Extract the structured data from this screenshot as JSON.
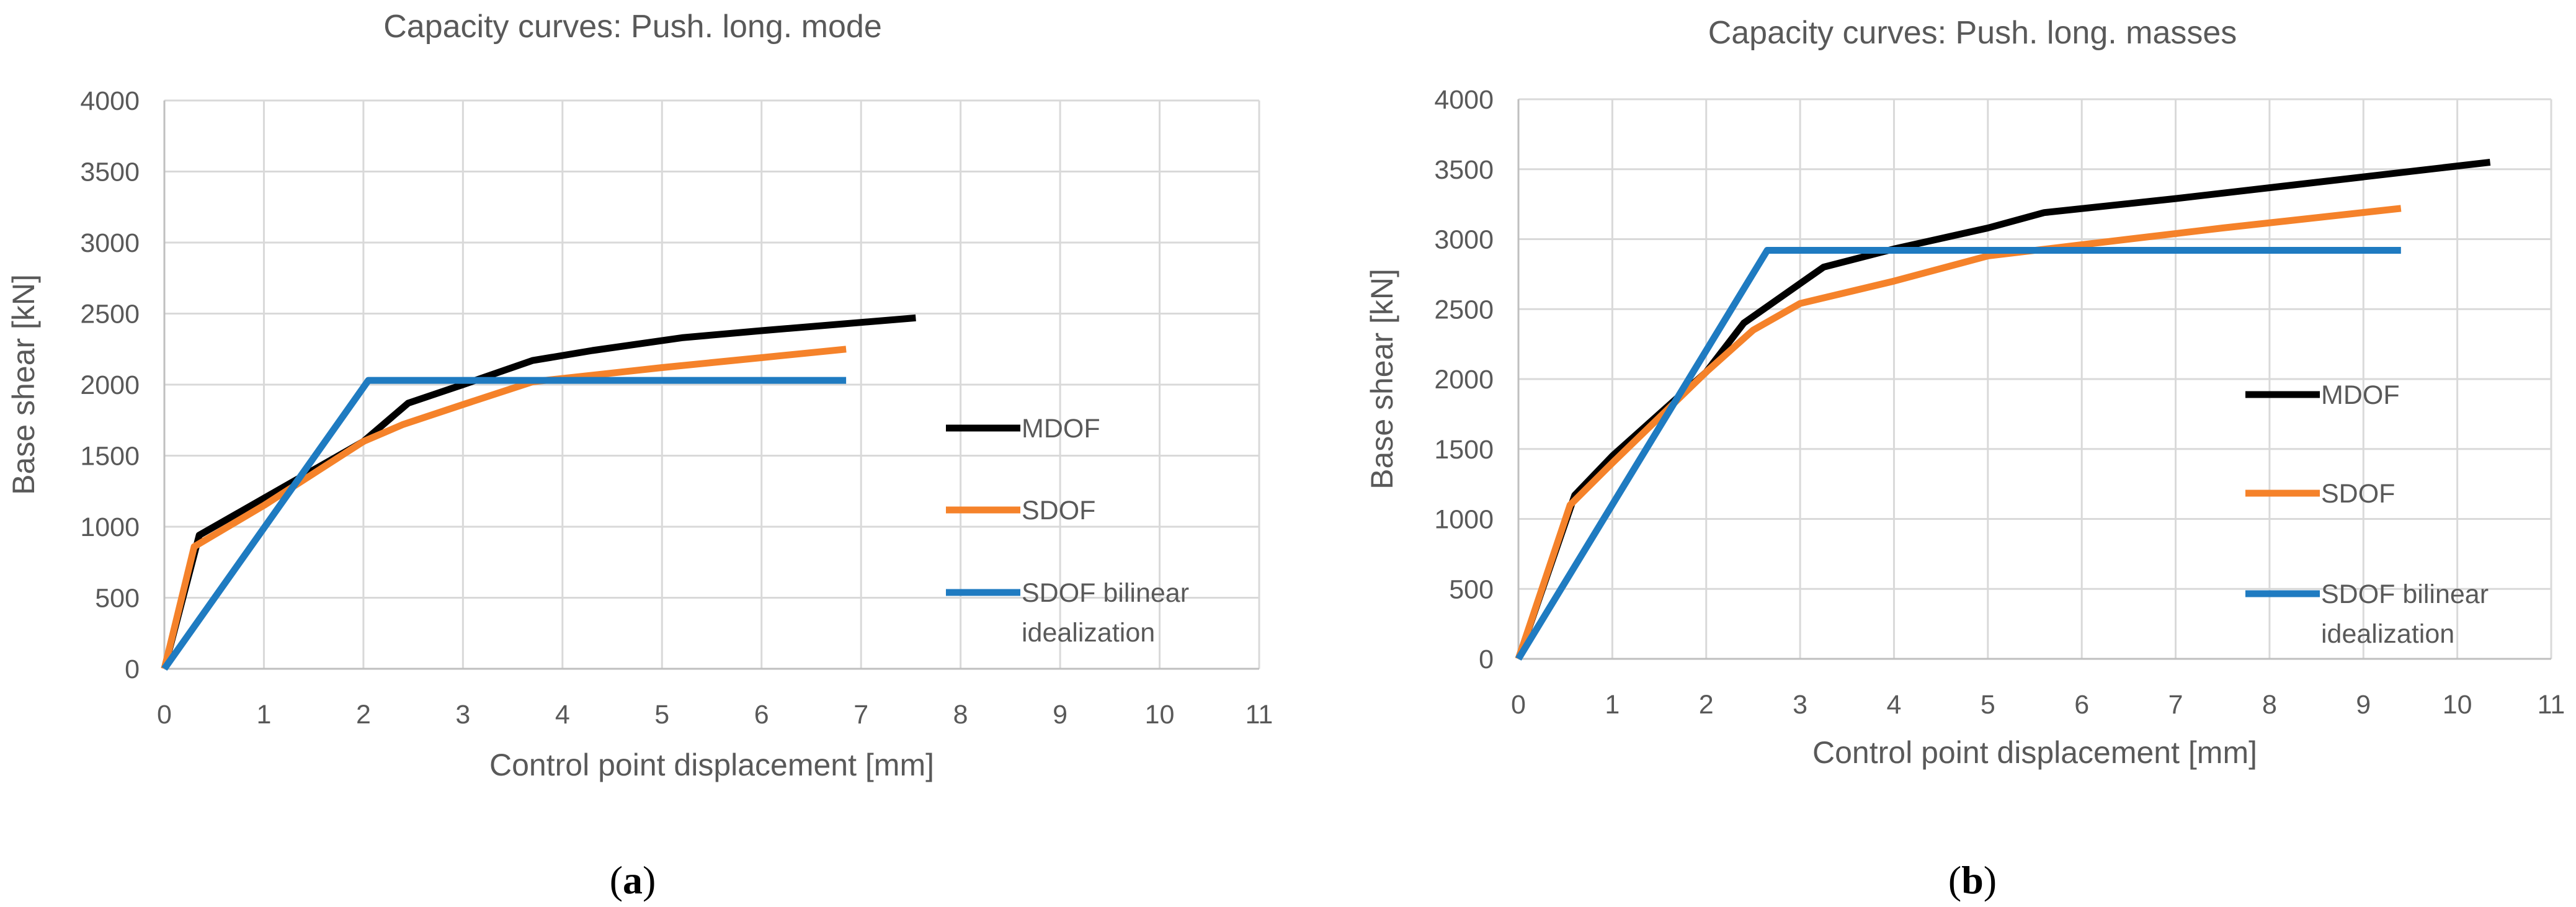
{
  "chart_data": [
    {
      "type": "line",
      "title": "Capacity curves: Push. long. mode",
      "xlabel": "Control point displacement [mm]",
      "ylabel": "Base shear [kN]",
      "xlim": [
        0,
        11
      ],
      "ylim": [
        0,
        4000
      ],
      "xticks": [
        0,
        1,
        2,
        3,
        4,
        5,
        6,
        7,
        8,
        9,
        10,
        11
      ],
      "yticks": [
        0,
        500,
        1000,
        1500,
        2000,
        2500,
        3000,
        3500,
        4000
      ],
      "grid": true,
      "legend": "right",
      "caption_open": "(",
      "caption_letter": "a",
      "caption_close": ")",
      "series": [
        {
          "name": "MDOF",
          "color": "#000000",
          "x": [
            0,
            0.35,
            1.0,
            2.0,
            2.45,
            3.0,
            3.7,
            4.3,
            5.2,
            6.0,
            7.55
          ],
          "y": [
            0,
            940,
            1200,
            1600,
            1870,
            2000,
            2170,
            2240,
            2330,
            2380,
            2470
          ]
        },
        {
          "name": "SDOF",
          "color": "#f5822a",
          "x": [
            0,
            0.3,
            1.0,
            2.0,
            2.4,
            3.0,
            3.7,
            5.0,
            6.0,
            6.85
          ],
          "y": [
            0,
            860,
            1150,
            1600,
            1720,
            1860,
            2020,
            2120,
            2190,
            2250
          ]
        },
        {
          "name": "SDOF bilinear idealization",
          "color": "#1f7bc1",
          "x": [
            0,
            2.05,
            6.85
          ],
          "y": [
            0,
            2030,
            2030
          ]
        }
      ]
    },
    {
      "type": "line",
      "title": "Capacity curves: Push. long. masses",
      "xlabel": "Control point displacement [mm]",
      "ylabel": "Base shear [kN]",
      "xlim": [
        0,
        11
      ],
      "ylim": [
        0,
        4000
      ],
      "xticks": [
        0,
        1,
        2,
        3,
        4,
        5,
        6,
        7,
        8,
        9,
        10,
        11
      ],
      "yticks": [
        0,
        500,
        1000,
        1500,
        2000,
        2500,
        3000,
        3500,
        4000
      ],
      "grid": true,
      "legend": "right",
      "caption_open": "(",
      "caption_letter": "b",
      "caption_close": ")",
      "series": [
        {
          "name": "MDOF",
          "color": "#000000",
          "x": [
            0,
            0.6,
            1.0,
            2.0,
            2.4,
            3.25,
            4.0,
            5.0,
            5.6,
            7.0,
            10.35
          ],
          "y": [
            0,
            1170,
            1450,
            2050,
            2400,
            2800,
            2930,
            3080,
            3190,
            3290,
            3550
          ]
        },
        {
          "name": "SDOF",
          "color": "#f5822a",
          "x": [
            0,
            0.55,
            1.0,
            2.0,
            2.5,
            3.0,
            4.0,
            5.0,
            6.0,
            7.5,
            9.4
          ],
          "y": [
            0,
            1100,
            1400,
            2050,
            2350,
            2540,
            2700,
            2880,
            2960,
            3080,
            3220
          ]
        },
        {
          "name": "SDOF bilinear idealization",
          "color": "#1f7bc1",
          "x": [
            0,
            2.65,
            9.4
          ],
          "y": [
            0,
            2920,
            2920
          ]
        }
      ]
    }
  ]
}
